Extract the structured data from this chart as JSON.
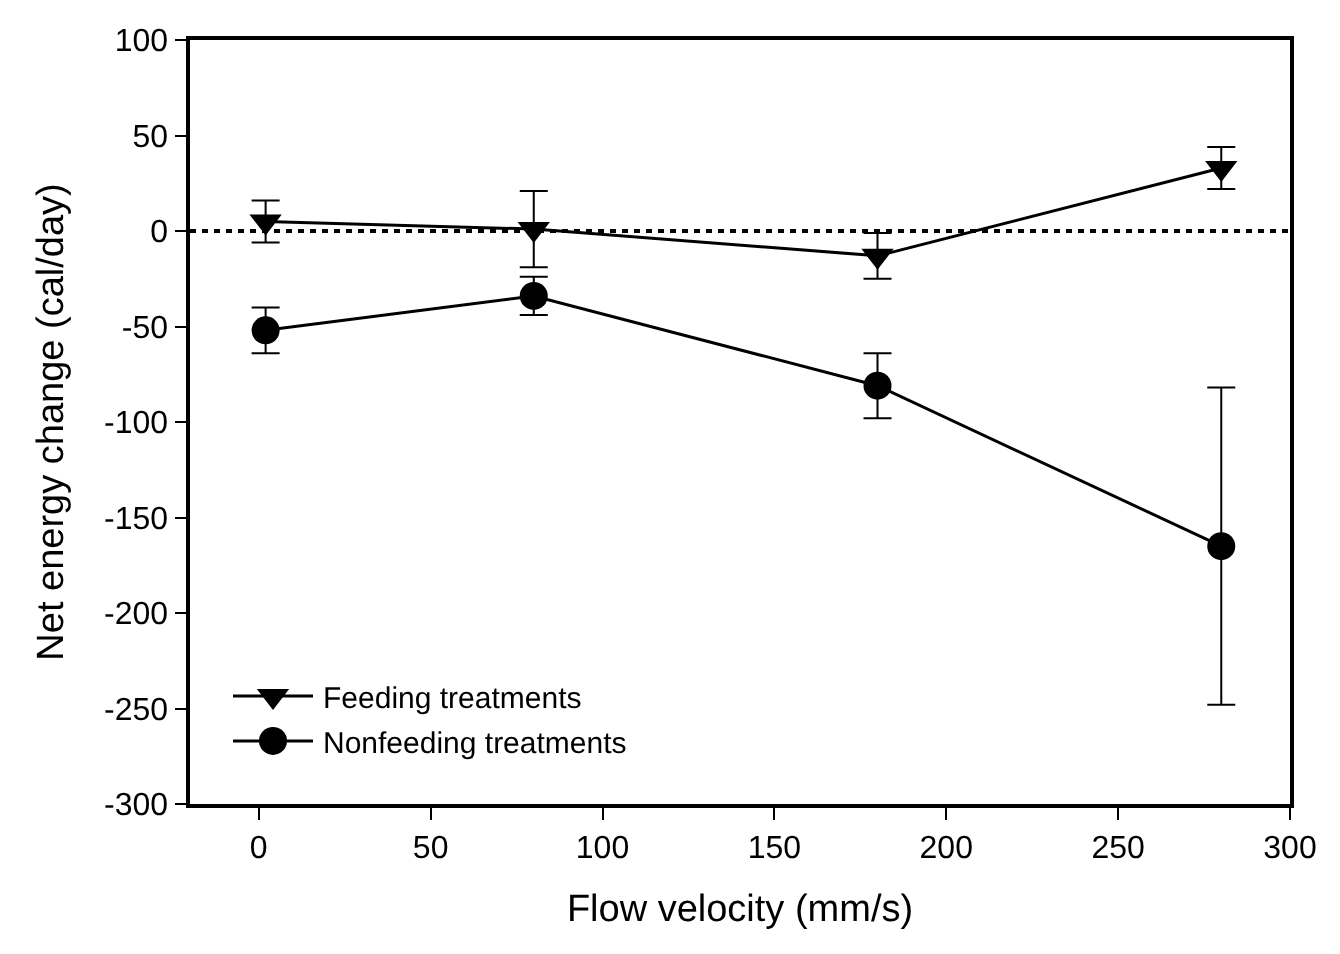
{
  "chart_data": {
    "type": "line",
    "xlabel": "Flow velocity (mm/s)",
    "ylabel": "Net energy change (cal/day)",
    "x": [
      2,
      80,
      180,
      280
    ],
    "series": [
      {
        "name": "Feeding treatments",
        "color": "#000000",
        "marker": "triangle",
        "values": [
          5,
          1,
          -13,
          33
        ],
        "errors": [
          11,
          20,
          12,
          11
        ]
      },
      {
        "name": "Nonfeeding treatments",
        "color": "#000000",
        "marker": "circle",
        "values": [
          -52,
          -34,
          -81,
          -165
        ],
        "errors": [
          12,
          10,
          17,
          83
        ]
      }
    ],
    "xlim": [
      -20,
      300
    ],
    "xticks": [
      0,
      50,
      100,
      150,
      200,
      250,
      300
    ],
    "ylim": [
      -300,
      100
    ],
    "yticks": [
      100,
      50,
      0,
      -50,
      -100,
      -150,
      -200,
      -250,
      -300
    ],
    "ref_lines": [
      {
        "axis": "y",
        "value": 0,
        "line_style": "dotted",
        "color": "#000000"
      }
    ],
    "legend": "bottom left",
    "line_style": "solid"
  }
}
